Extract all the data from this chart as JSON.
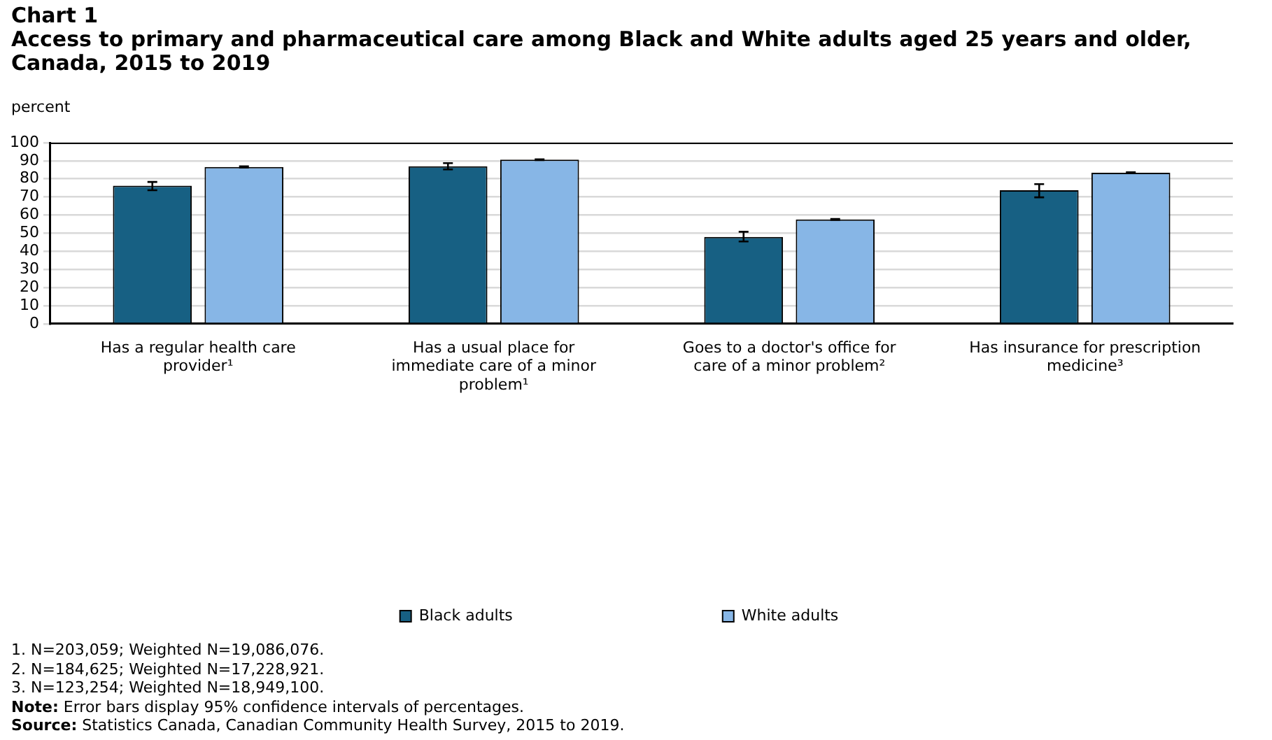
{
  "chart_data": {
    "type": "bar",
    "title": "Chart 1",
    "subtitle": "Access to primary and pharmaceutical care among Black and White adults aged 25 years and older, Canada, 2015 to 2019",
    "ylabel": "percent",
    "categories": [
      "Has a regular health care provider¹",
      "Has a usual place for immediate care of a minor problem¹",
      "Goes to a doctor's office for care of a minor problem²",
      "Has insurance for prescription medicine³"
    ],
    "series": [
      {
        "name": "Black adults",
        "color": "#176083",
        "values": [
          76.2,
          87.0,
          47.9,
          73.7
        ],
        "errors": [
          [
            73.7,
            78.3
          ],
          [
            85.2,
            88.7
          ],
          [
            45.4,
            50.8
          ],
          [
            69.8,
            77.1
          ]
        ]
      },
      {
        "name": "White adults",
        "color": "#87b6e6",
        "values": [
          86.6,
          90.6,
          57.6,
          83.4
        ],
        "errors": [
          0.3,
          0.2,
          0.3,
          0.3
        ]
      }
    ],
    "ylim": [
      0,
      100
    ],
    "yticks": [
      0,
      10,
      20,
      30,
      40,
      50,
      60,
      70,
      80,
      90,
      100
    ],
    "grid": "y",
    "legend": "bottom",
    "annotations": [
      "1. N=203,059;  Weighted N=19,086,076.",
      "2. N=184,625;  Weighted N=17,228,921.",
      "3. N=123,254;  Weighted N=18,949,100.",
      "Note: Error bars display 95% confidence intervals of percentages.",
      "Source: Statistics Canada, Canadian Community Health Survey, 2015 to 2019."
    ]
  }
}
